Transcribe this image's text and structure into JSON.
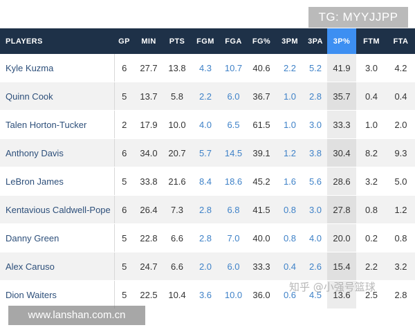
{
  "watermarks": {
    "tg": "TG: MYYJJPP",
    "url": "www.lanshan.com.cn",
    "zh": "知乎 @小强号篮球"
  },
  "table": {
    "headers": [
      "PLAYERS",
      "GP",
      "MIN",
      "PTS",
      "FGM",
      "FGA",
      "FG%",
      "3PM",
      "3PA",
      "3P%",
      "FTM",
      "FTA"
    ],
    "sorted_column": "3P%",
    "rows": [
      {
        "player": "Kyle Kuzma",
        "stats": [
          "6",
          "27.7",
          "13.8",
          "4.3",
          "10.7",
          "40.6",
          "2.2",
          "5.2",
          "41.9",
          "3.0",
          "4.2"
        ]
      },
      {
        "player": "Quinn Cook",
        "stats": [
          "5",
          "13.7",
          "5.8",
          "2.2",
          "6.0",
          "36.7",
          "1.0",
          "2.8",
          "35.7",
          "0.4",
          "0.4"
        ]
      },
      {
        "player": "Talen Horton-Tucker",
        "stats": [
          "2",
          "17.9",
          "10.0",
          "4.0",
          "6.5",
          "61.5",
          "1.0",
          "3.0",
          "33.3",
          "1.0",
          "2.0"
        ]
      },
      {
        "player": "Anthony Davis",
        "stats": [
          "6",
          "34.0",
          "20.7",
          "5.7",
          "14.5",
          "39.1",
          "1.2",
          "3.8",
          "30.4",
          "8.2",
          "9.3"
        ]
      },
      {
        "player": "LeBron James",
        "stats": [
          "5",
          "33.8",
          "21.6",
          "8.4",
          "18.6",
          "45.2",
          "1.6",
          "5.6",
          "28.6",
          "3.2",
          "5.0"
        ]
      },
      {
        "player": "Kentavious Caldwell-Pope",
        "stats": [
          "6",
          "26.4",
          "7.3",
          "2.8",
          "6.8",
          "41.5",
          "0.8",
          "3.0",
          "27.8",
          "0.8",
          "1.2"
        ]
      },
      {
        "player": "Danny Green",
        "stats": [
          "5",
          "22.8",
          "6.6",
          "2.8",
          "7.0",
          "40.0",
          "0.8",
          "4.0",
          "20.0",
          "0.2",
          "0.8"
        ]
      },
      {
        "player": "Alex Caruso",
        "stats": [
          "5",
          "24.7",
          "6.6",
          "2.0",
          "6.0",
          "33.3",
          "0.4",
          "2.6",
          "15.4",
          "2.2",
          "3.2"
        ]
      },
      {
        "player": "Dion Waiters",
        "stats": [
          "5",
          "22.5",
          "10.4",
          "3.6",
          "10.0",
          "36.0",
          "0.6",
          "4.5",
          "13.6",
          "2.5",
          "2.8"
        ]
      }
    ]
  }
}
